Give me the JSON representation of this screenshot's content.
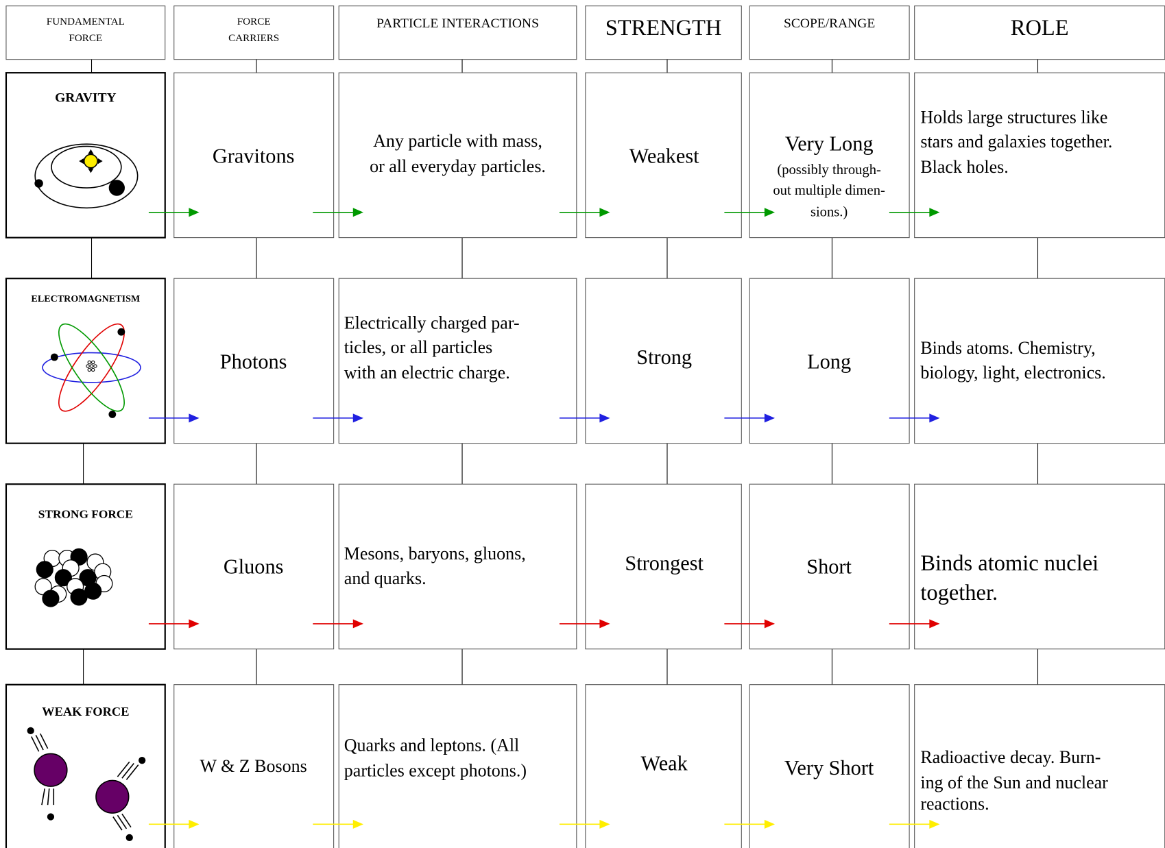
{
  "headers": [
    [
      "FUNDAMENTAL",
      "FORCE"
    ],
    [
      "FORCE",
      "CARRIERS"
    ],
    [
      "PARTICLE INTERACTIONS"
    ],
    [
      "STRENGTH"
    ],
    [
      "SCOPE/RANGE"
    ],
    [
      "ROLE"
    ]
  ],
  "rows": [
    {
      "force": "GRAVITY",
      "carriers": [
        "Gravitons"
      ],
      "interactions": [
        "Any particle with mass,",
        "or all everyday particles."
      ],
      "strength": [
        "Weakest"
      ],
      "range": [
        "Very Long"
      ],
      "range_note": [
        "(possibly through-",
        "out multiple dimen-",
        "sions.)"
      ],
      "role": [
        "Holds large structures like",
        "stars and galaxies together.",
        "Black holes."
      ]
    },
    {
      "force": "ELECTROMAGNETISM",
      "carriers": [
        "Photons"
      ],
      "interactions": [
        "Electrically charged par-",
        "ticles, or all particles",
        "with an electric charge."
      ],
      "strength": [
        "Strong"
      ],
      "range": [
        "Long"
      ],
      "role": [
        "Binds atoms.  Chemistry,",
        "biology, light, electronics."
      ]
    },
    {
      "force": "STRONG FORCE",
      "carriers": [
        "Gluons"
      ],
      "interactions": [
        "Mesons, baryons, gluons,",
        "and quarks."
      ],
      "strength": [
        "Strongest"
      ],
      "range": [
        "Short"
      ],
      "role": [
        "Binds atomic nuclei",
        "together."
      ]
    },
    {
      "force": "WEAK FORCE",
      "carriers": [
        "W & Z Bosons"
      ],
      "interactions": [
        "Quarks and leptons.  (All",
        "particles except photons.)"
      ],
      "strength": [
        "Weak"
      ],
      "range": [
        "Very Short"
      ],
      "role": [
        "Radioactive decay.  Burn-",
        "ing of the Sun and nuclear",
        "reactions."
      ]
    }
  ]
}
